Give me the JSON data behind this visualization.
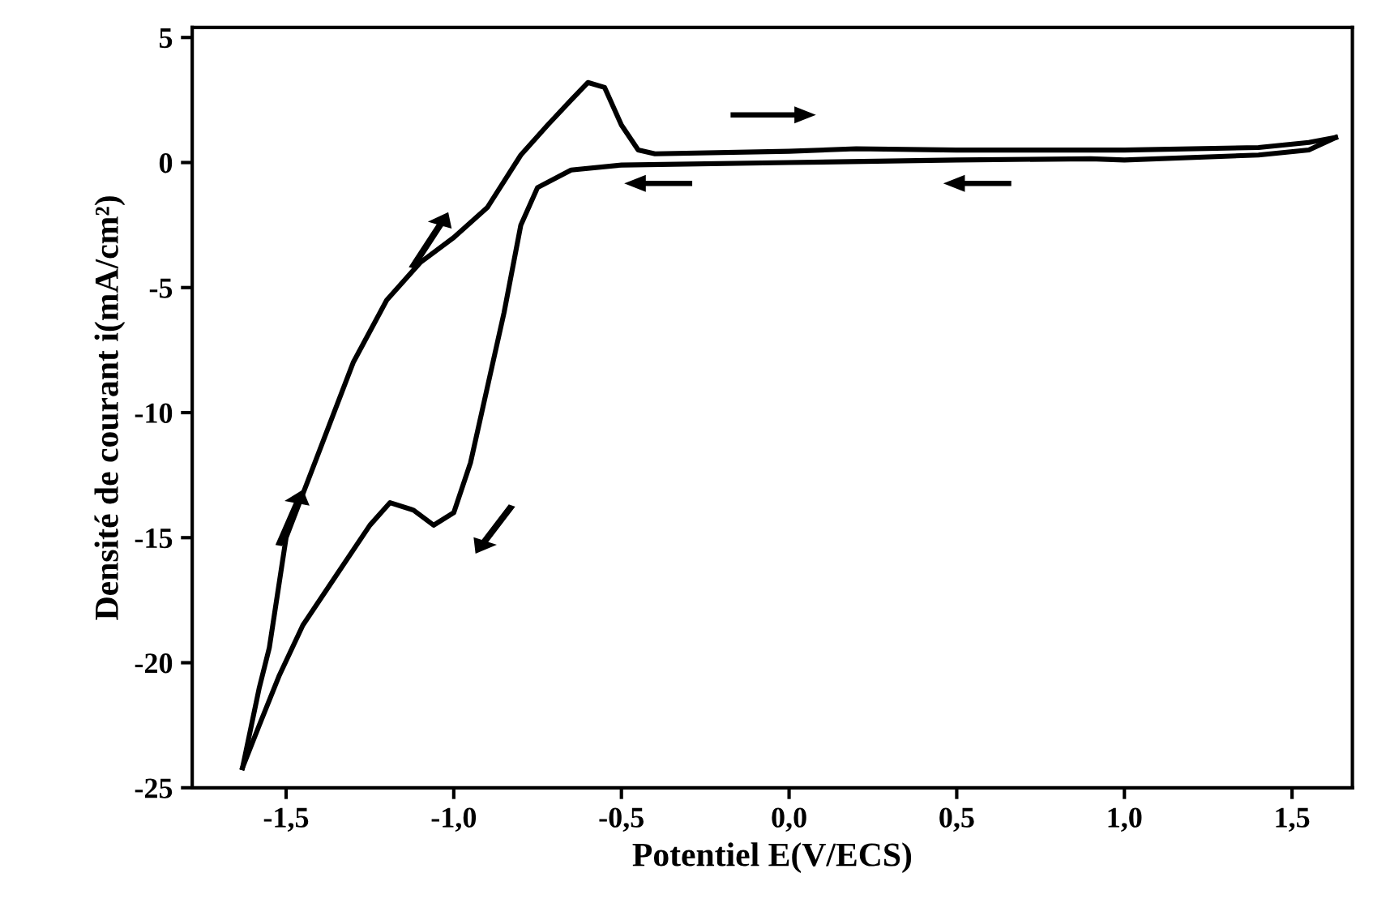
{
  "chart_data": {
    "type": "line",
    "xlabel": "Potentiel E(V/ECS)",
    "ylabel": "Densité de courant i(mA/cm²)",
    "series": [
      {
        "color": "#000000",
        "x": [
          -1.63,
          -1.58,
          -1.55,
          -1.5,
          -1.4,
          -1.3,
          -1.2,
          -1.1,
          -1.0,
          -0.9,
          -0.8,
          -0.72,
          -0.65,
          -0.6,
          -0.55,
          -0.5,
          -0.45,
          -0.4,
          0.0,
          0.2,
          0.5,
          1.0,
          1.4,
          1.55,
          1.63
        ],
        "values": [
          -24.2,
          -21,
          -19.4,
          -15,
          -11.5,
          -8,
          -5.5,
          -4,
          -3,
          -1.8,
          0.3,
          1.5,
          2.5,
          3.2,
          3.0,
          1.5,
          0.5,
          0.35,
          0.45,
          0.55,
          0.5,
          0.5,
          0.6,
          0.8,
          1.0
        ]
      },
      {
        "color": "#000000",
        "x": [
          1.63,
          1.55,
          1.4,
          1.0,
          0.9,
          0.5,
          0.0,
          -0.5,
          -0.65,
          -0.75,
          -0.8,
          -0.85,
          -0.9,
          -0.95,
          -1.0,
          -1.06,
          -1.12,
          -1.19,
          -1.25,
          -1.35,
          -1.45,
          -1.52,
          -1.58,
          -1.63
        ],
        "values": [
          1.0,
          0.5,
          0.3,
          0.1,
          0.15,
          0.1,
          0.0,
          -0.1,
          -0.3,
          -1,
          -2.5,
          -6,
          -9,
          -12,
          -14,
          -14.5,
          -13.9,
          -13.6,
          -14.5,
          -16.5,
          -18.5,
          -20.5,
          -22.5,
          -24.2
        ]
      }
    ],
    "xlim": [
      -1.78,
      1.68
    ],
    "ylim": [
      -25,
      5.4
    ],
    "xticks": [
      {
        "value": -1.5,
        "label": "-1,5"
      },
      {
        "value": -1.0,
        "label": "-1,0"
      },
      {
        "value": -0.5,
        "label": "-0,5"
      },
      {
        "value": 0.0,
        "label": "0,0"
      },
      {
        "value": 0.5,
        "label": "0,5"
      },
      {
        "value": 1.0,
        "label": "1,0"
      },
      {
        "value": 1.5,
        "label": "1,5"
      }
    ],
    "yticks": [
      -25,
      -20,
      -15,
      -10,
      -5,
      0,
      5
    ],
    "grid": false,
    "marker": "none",
    "line_style": "solid"
  }
}
